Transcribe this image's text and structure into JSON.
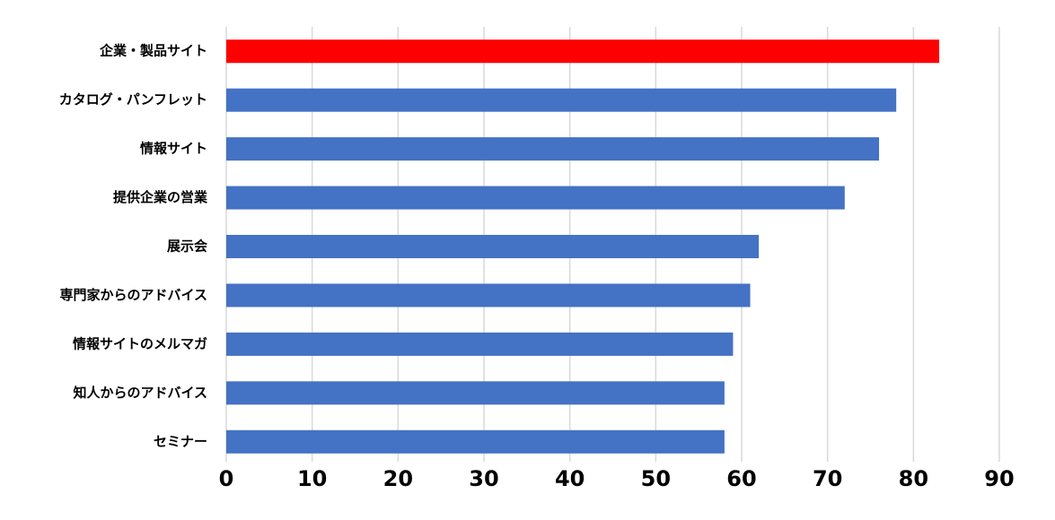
{
  "chart_data": {
    "type": "bar",
    "orientation": "horizontal",
    "categories": [
      "企業・製品サイト",
      "カタログ・パンフレット",
      "情報サイト",
      "提供企業の営業",
      "展示会",
      "専門家からのアドバイス",
      "情報サイトのメルマガ",
      "知人からのアドバイス",
      "セミナー"
    ],
    "values": [
      83,
      78,
      76,
      72,
      62,
      61,
      59,
      58,
      58
    ],
    "colors": [
      "#ff0000",
      "#4472c4",
      "#4472c4",
      "#4472c4",
      "#4472c4",
      "#4472c4",
      "#4472c4",
      "#4472c4",
      "#4472c4"
    ],
    "xlim": [
      0,
      90
    ],
    "xticks": [
      0,
      10,
      20,
      30,
      40,
      50,
      60,
      70,
      80,
      90
    ],
    "grid": true
  }
}
